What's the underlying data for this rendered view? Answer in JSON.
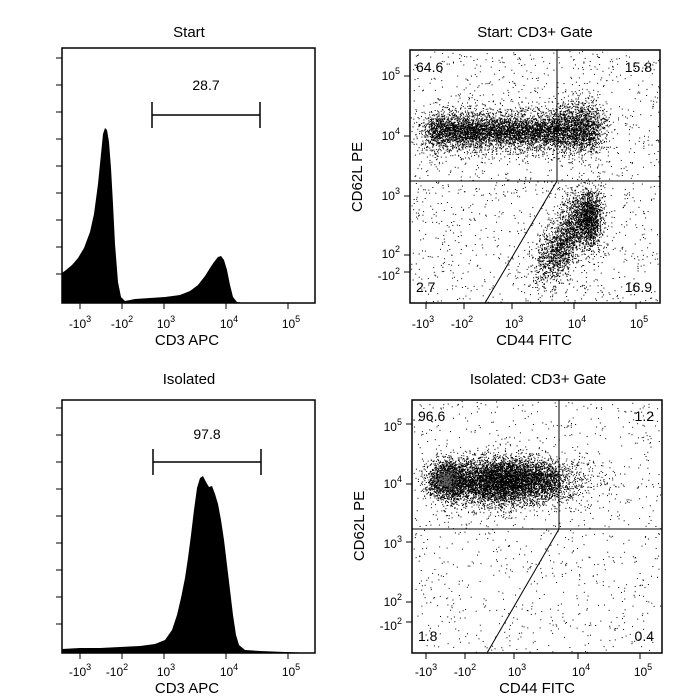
{
  "chart_data": [
    {
      "type": "histogram",
      "title": "Start",
      "xlabel": "CD3 APC",
      "x_scale": "logicle",
      "xticks": [
        "-10^3",
        "-10^2",
        "10^3",
        "10^4",
        "10^5"
      ],
      "gate": {
        "label": "28.7",
        "from": 700,
        "to": 30000
      },
      "peaks": [
        {
          "center": -200,
          "relative_height": 1.0
        },
        {
          "center": 5000,
          "relative_height": 0.3
        }
      ]
    },
    {
      "type": "scatter",
      "title": "Start: CD3+ Gate",
      "xlabel": "CD44 FITC",
      "ylabel": "CD62L PE",
      "x_scale": "logicle",
      "y_scale": "logicle",
      "xticks": [
        "-10^3",
        "-10^2",
        "10^3",
        "10^4",
        "10^5"
      ],
      "yticks": [
        "-10^2",
        "10^2",
        "10^3",
        "10^4",
        "10^5"
      ],
      "quadrants": {
        "x_split": 5000,
        "y_split": 1500
      },
      "quadrant_values": {
        "top_left": "64.6",
        "top_right": "15.8",
        "bottom_left": "2.7",
        "bottom_right": "16.9"
      }
    },
    {
      "type": "histogram",
      "title": "Isolated",
      "xlabel": "CD3 APC",
      "x_scale": "logicle",
      "xticks": [
        "-10^3",
        "-10^2",
        "10^3",
        "10^4",
        "10^5"
      ],
      "gate": {
        "label": "97.8",
        "from": 700,
        "to": 30000
      },
      "peaks": [
        {
          "center": 4000,
          "relative_height": 1.0
        }
      ]
    },
    {
      "type": "scatter",
      "title": "Isolated: CD3+ Gate",
      "xlabel": "CD44 FITC",
      "ylabel": "CD62L PE",
      "x_scale": "logicle",
      "y_scale": "logicle",
      "xticks": [
        "-10^3",
        "-10^2",
        "10^3",
        "10^4",
        "10^5"
      ],
      "yticks": [
        "-10^2",
        "10^2",
        "10^3",
        "10^4",
        "10^5"
      ],
      "quadrants": {
        "x_split": 5000,
        "y_split": 1500
      },
      "quadrant_values": {
        "top_left": "96.6",
        "top_right": "1.2",
        "bottom_left": "1.8",
        "bottom_right": "0.4"
      }
    }
  ]
}
